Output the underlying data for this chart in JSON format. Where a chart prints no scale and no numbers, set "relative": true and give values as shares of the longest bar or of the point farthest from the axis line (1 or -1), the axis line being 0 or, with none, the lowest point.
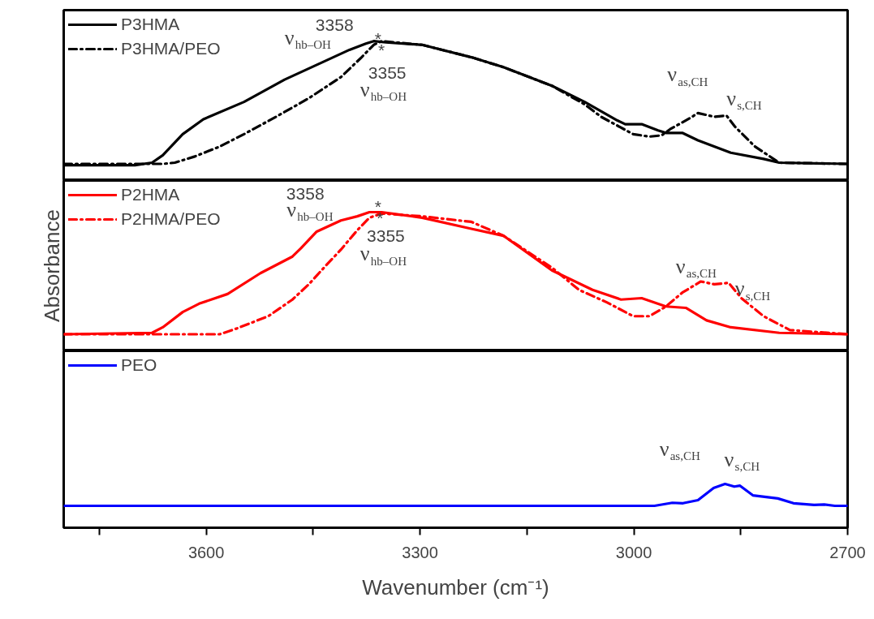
{
  "chart_data": [
    {
      "type": "line",
      "relative": true,
      "xlim": [
        3800,
        2700
      ],
      "tick_labels": false,
      "legend": "top left",
      "grid": false,
      "x": [
        3800,
        3700,
        3676,
        3661,
        3633,
        3604,
        3547,
        3490,
        3433,
        3399,
        3376,
        3365,
        3348,
        3297,
        3228,
        3183,
        3115,
        3069,
        3023,
        3012,
        2989,
        2966,
        2955,
        2932,
        2910,
        2864,
        2818,
        2796,
        2700
      ],
      "series": [
        {
          "name": "P3HMA",
          "color": "#000000",
          "line_style": "solid",
          "values": [
            0,
            0,
            0.02,
            0.08,
            0.25,
            0.37,
            0.51,
            0.69,
            0.84,
            0.93,
            0.98,
            1.0,
            0.99,
            0.97,
            0.87,
            0.79,
            0.64,
            0.51,
            0.36,
            0.33,
            0.33,
            0.28,
            0.26,
            0.26,
            0.2,
            0.1,
            0.05,
            0.02,
            0.01
          ]
        },
        {
          "name": "P3HMA/PEO",
          "color": "#000000",
          "line_style": "dashdot",
          "x": [
            3800,
            3661,
            3644,
            3616,
            3581,
            3547,
            3502,
            3456,
            3411,
            3382,
            3365,
            3354,
            3297,
            3228,
            3183,
            3115,
            3069,
            3046,
            3001,
            2978,
            2961,
            2949,
            2921,
            2910,
            2887,
            2870,
            2858,
            2830,
            2796,
            2700
          ],
          "values": [
            0.01,
            0.01,
            0.02,
            0.07,
            0.15,
            0.25,
            0.39,
            0.54,
            0.71,
            0.87,
            0.97,
            1.0,
            0.97,
            0.87,
            0.79,
            0.64,
            0.49,
            0.39,
            0.25,
            0.23,
            0.24,
            0.29,
            0.38,
            0.42,
            0.39,
            0.4,
            0.31,
            0.15,
            0.02,
            0.01
          ]
        }
      ],
      "annotations": [
        "3358",
        "ν$_{hb–OH}$",
        "*",
        "*",
        "3355",
        "ν$_{hb–OH}$",
        "ν$_{as,CH}$",
        "ν$_{s,CH}$"
      ]
    },
    {
      "type": "line",
      "relative": true,
      "xlim": [
        3800,
        2700
      ],
      "tick_labels": false,
      "legend": "top left",
      "grid": false,
      "ylabel": "Absorbance",
      "x": [
        3800,
        3676,
        3661,
        3633,
        3610,
        3570,
        3524,
        3479,
        3467,
        3445,
        3411,
        3388,
        3371,
        3354,
        3297,
        3228,
        3183,
        3115,
        3058,
        3018,
        2989,
        2955,
        2927,
        2898,
        2864,
        2796,
        2700
      ],
      "series": [
        {
          "name": "P2HMA",
          "color": "#ff0000",
          "line_style": "solid",
          "values": [
            0.12,
            0.13,
            0.17,
            0.28,
            0.34,
            0.41,
            0.56,
            0.68,
            0.74,
            0.86,
            0.94,
            0.97,
            1.0,
            1.0,
            0.96,
            0.88,
            0.83,
            0.58,
            0.44,
            0.37,
            0.38,
            0.32,
            0.31,
            0.22,
            0.17,
            0.13,
            0.12
          ]
        },
        {
          "name": "P2HMA/PEO",
          "color": "#ff0000",
          "line_style": "dashdot",
          "x": [
            3800,
            3581,
            3558,
            3513,
            3479,
            3456,
            3433,
            3411,
            3388,
            3371,
            3354,
            3297,
            3228,
            3183,
            3115,
            3077,
            3038,
            3001,
            2978,
            2955,
            2932,
            2906,
            2887,
            2867,
            2849,
            2818,
            2781,
            2700
          ],
          "values": [
            0.12,
            0.12,
            0.16,
            0.25,
            0.37,
            0.48,
            0.61,
            0.73,
            0.87,
            0.96,
            0.99,
            0.97,
            0.93,
            0.83,
            0.6,
            0.44,
            0.35,
            0.25,
            0.25,
            0.32,
            0.42,
            0.5,
            0.48,
            0.49,
            0.38,
            0.25,
            0.15,
            0.12
          ]
        }
      ],
      "annotations": [
        "3358",
        "ν$_{hb–OH}$",
        "*",
        "*",
        "3355",
        "ν$_{hb–OH}$",
        "ν$_{as,CH}$",
        "ν$_{s,CH}$"
      ]
    },
    {
      "type": "line",
      "relative": true,
      "xlim": [
        3800,
        2700
      ],
      "tick_labels": "x",
      "legend": "top left",
      "grid": false,
      "xlabel": "Wavenumber (cm⁻¹)",
      "xticks": [
        {
          "value": 3750,
          "label": null
        },
        3600,
        {
          "value": 3450,
          "label": null
        },
        3300,
        {
          "value": 3150,
          "label": null
        },
        3000,
        {
          "value": 2850,
          "label": null
        },
        2700
      ],
      "x": [
        3800,
        2971,
        2946,
        2931,
        2910,
        2888,
        2872,
        2859,
        2851,
        2833,
        2798,
        2776,
        2747,
        2733,
        2718,
        2700
      ],
      "series": [
        {
          "name": "PEO",
          "color": "#0000ff",
          "line_style": "solid",
          "values": [
            0.5,
            0.5,
            0.57,
            0.56,
            0.63,
            0.91,
            1.0,
            0.94,
            0.96,
            0.74,
            0.67,
            0.56,
            0.52,
            0.53,
            0.5,
            0.5
          ]
        }
      ],
      "annotations": [
        "ν$_{as,CH}$",
        "ν$_{s,CH}$"
      ]
    }
  ]
}
